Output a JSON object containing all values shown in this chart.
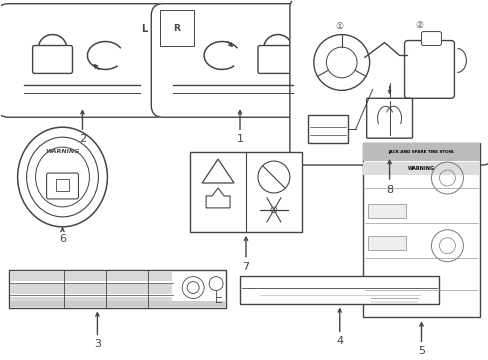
{
  "bg_color": "#ffffff",
  "line_color": "#444444",
  "fig_width": 4.89,
  "fig_height": 3.6,
  "dpi": 100,
  "xlim": [
    0,
    489
  ],
  "ylim": [
    0,
    360
  ]
}
